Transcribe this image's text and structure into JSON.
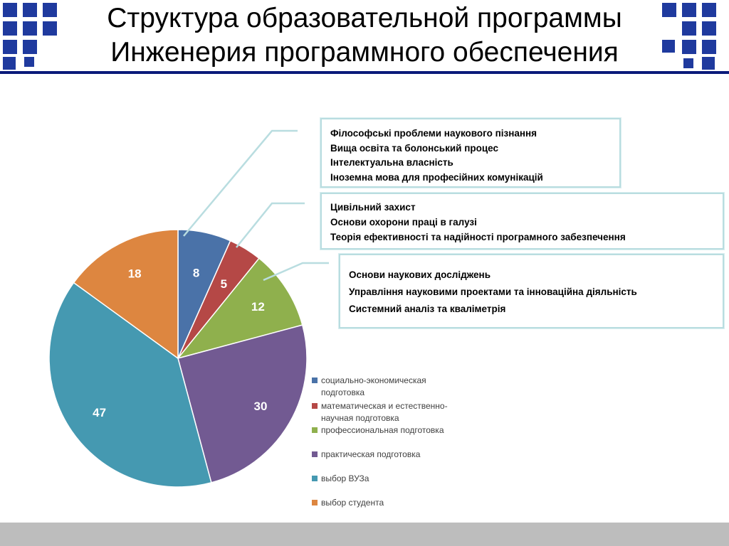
{
  "header": {
    "title_line1": "Структура образовательной программы",
    "title_line2": "Инженерия программного обеспечения",
    "band_color": "#0a1a7a",
    "tile_color": "#1f3a9e"
  },
  "callouts": [
    {
      "lines": [
        "Філософські проблеми наукового пізнання",
        "Вища освіта та болонський процес",
        "Інтелектуальна власність",
        "Іноземна мова для професійних комунікацій"
      ]
    },
    {
      "lines": [
        "Цивільний захист",
        "Основи охорони праці в галузі",
        "Теорія ефективності та надійності програмного забезпечення"
      ]
    },
    {
      "lines": [
        "Основи наукових досліджень",
        "Управління науковими проектами та інноваційна діяльність",
        "Системний аналіз та кваліметрія"
      ]
    }
  ],
  "chart_data": {
    "type": "pie",
    "title": "",
    "legend_position": "right",
    "slices": [
      {
        "label": "социально-экономическая подготовка",
        "legend_lines": [
          "социально-экономическая",
          "подготовка"
        ],
        "value": 8,
        "color": "#4a72a8"
      },
      {
        "label": "математическая и естественно-научная подготовка",
        "legend_lines": [
          "математическая и естественно-",
          "научная подготовка"
        ],
        "value": 5,
        "color": "#b54846"
      },
      {
        "label": "профессиональная подготовка",
        "legend_lines": [
          "профессиональная подготовка"
        ],
        "value": 12,
        "color": "#8fb04d"
      },
      {
        "label": "практическая подготовка",
        "legend_lines": [
          "практическая подготовка"
        ],
        "value": 30,
        "color": "#725a92"
      },
      {
        "label": "выбор ВУЗа",
        "legend_lines": [
          "выбор ВУЗа"
        ],
        "value": 47,
        "color": "#4599b1"
      },
      {
        "label": "выбор студента",
        "legend_lines": [
          "выбор студента"
        ],
        "value": 18,
        "color": "#dd8640"
      }
    ]
  },
  "footer": {
    "color": "#bdbdbd"
  }
}
